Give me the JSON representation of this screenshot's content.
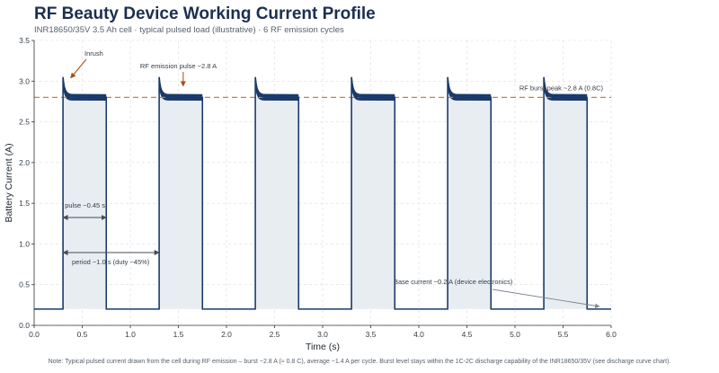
{
  "title": "RF Beauty Device Working Current Profile",
  "subtitle": "INR18650/35V 3.5 Ah cell · typical pulsed load (illustrative) · 6 RF emission cycles",
  "note": "Note: Typical pulsed current drawn from the cell during RF emission – burst ~2.8 A (≈ 0.8 C), average ~1.4 A per cycle. Burst level stays within the 1C-2C discharge capability of the INR18650/35V (see discharge curve chart).",
  "chart_data": {
    "type": "line",
    "title": "RF Beauty Device Working Current Profile",
    "xlabel": "Time (s)",
    "ylabel": "Battery Current (A)",
    "xlim": [
      0.0,
      6.0
    ],
    "ylim": [
      0.0,
      3.5
    ],
    "xticks": [
      0.0,
      0.5,
      1.0,
      1.5,
      2.0,
      2.5,
      3.0,
      3.5,
      4.0,
      4.5,
      5.0,
      5.5,
      6.0
    ],
    "yticks": [
      0.0,
      0.5,
      1.0,
      1.5,
      2.0,
      2.5,
      3.0,
      3.5
    ],
    "xtick_labels": [
      "0.0",
      "0.5",
      "1.0",
      "1.5",
      "2.0",
      "2.5",
      "3.0",
      "3.5",
      "4.0",
      "4.5",
      "5.0",
      "5.5",
      "6.0"
    ],
    "ytick_labels": [
      "0.0",
      "0.5",
      "1.0",
      "1.5",
      "2.0",
      "2.5",
      "3.0",
      "3.5"
    ],
    "grid": true,
    "base_current": 0.2,
    "burst_current": 2.8,
    "inrush_peak": 3.05,
    "pulse_width": 0.45,
    "period": 1.0,
    "pulse_starts": [
      0.3,
      1.3,
      2.3,
      3.3,
      4.3,
      5.3
    ],
    "reference_line": {
      "y": 2.8,
      "label": "RF burst peak ~2.8 A (0.8C)",
      "color": "#e07b2c"
    },
    "series": [
      {
        "values": "pulsed current waveform",
        "color": "#1b3a6b",
        "fill": "#e8edf2"
      }
    ],
    "annotations": {
      "inrush": "Inrush",
      "rf_pulse": "RF emission pulse ~2.8 A",
      "pulse": "pulse ~0.45 s",
      "period": "period ~1.0 s  (duty ~45%)",
      "base": "Base current ~0.2 A (device electronics)"
    }
  }
}
